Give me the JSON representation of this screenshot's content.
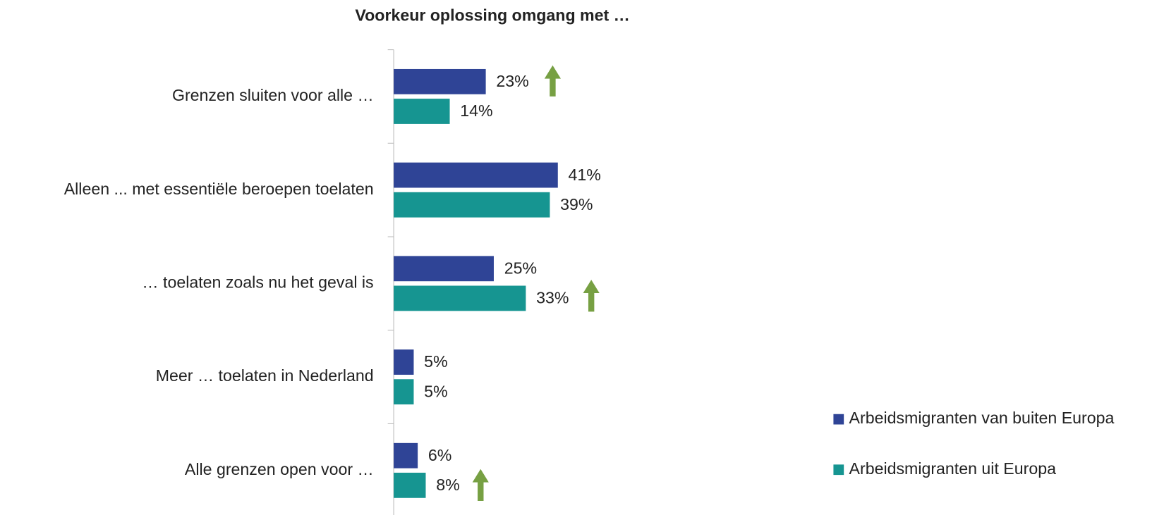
{
  "chart_data": {
    "type": "bar",
    "orientation": "horizontal",
    "title": "Voorkeur oplossing omgang met …",
    "categories": [
      "Grenzen sluiten voor alle …",
      "Alleen ... met essentiële beroepen toelaten",
      "… toelaten zoals nu het geval is",
      "Meer … toelaten in Nederland",
      "Alle grenzen open voor …"
    ],
    "series": [
      {
        "name": "Arbeidsmigranten van buiten Europa",
        "color": "#2f4496",
        "values": [
          23,
          41,
          25,
          5,
          6
        ],
        "value_labels": [
          "23%",
          "41%",
          "25%",
          "5%",
          "6%"
        ]
      },
      {
        "name": "Arbeidsmigranten uit Europa",
        "color": "#169591",
        "values": [
          14,
          39,
          33,
          5,
          8
        ],
        "value_labels": [
          "14%",
          "39%",
          "33%",
          "5%",
          "8%"
        ]
      }
    ],
    "legend": "right"
  }
}
